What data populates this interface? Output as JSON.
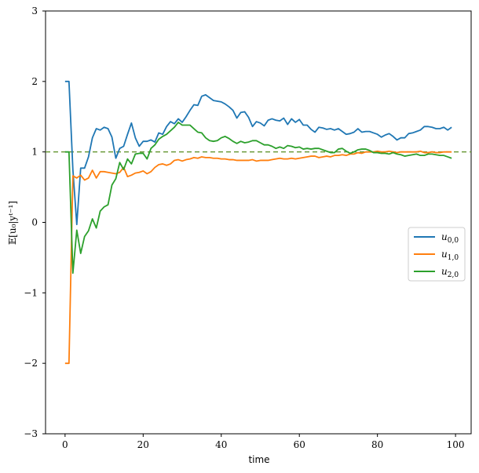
{
  "chart_data": {
    "type": "line",
    "title": "",
    "xlabel": "time",
    "ylabel": "𝔼[u₀|yᵗ⁻¹]",
    "xlim": [
      -5,
      104
    ],
    "ylim": [
      -3,
      3
    ],
    "xticks": [
      0,
      20,
      40,
      60,
      80,
      100
    ],
    "yticks": [
      -3,
      -2,
      -1,
      0,
      1,
      2,
      3
    ],
    "xtick_labels": [
      "0",
      "20",
      "40",
      "60",
      "80",
      "100"
    ],
    "ytick_labels": [
      "−3",
      "−2",
      "−1",
      "0",
      "1",
      "2",
      "3"
    ],
    "grid": false,
    "legend_position": "center-right",
    "reference_line": {
      "y": 1,
      "style": "dashed",
      "color": "#6b9a3a"
    },
    "x": [
      0,
      1,
      2,
      3,
      4,
      5,
      6,
      7,
      8,
      9,
      10,
      11,
      12,
      13,
      14,
      15,
      16,
      17,
      18,
      19,
      20,
      21,
      22,
      23,
      24,
      25,
      26,
      27,
      28,
      29,
      30,
      31,
      32,
      33,
      34,
      35,
      36,
      37,
      38,
      39,
      40,
      41,
      42,
      43,
      44,
      45,
      46,
      47,
      48,
      49,
      50,
      51,
      52,
      53,
      54,
      55,
      56,
      57,
      58,
      59,
      60,
      61,
      62,
      63,
      64,
      65,
      66,
      67,
      68,
      69,
      70,
      71,
      72,
      73,
      74,
      75,
      76,
      77,
      78,
      79,
      80,
      81,
      82,
      83,
      84,
      85,
      86,
      87,
      88,
      89,
      90,
      91,
      92,
      93,
      94,
      95,
      96,
      97,
      98,
      99
    ],
    "series": [
      {
        "name": "u_{0,0}",
        "color": "#1f77b4",
        "values": [
          2.0,
          2.0,
          0.75,
          -0.03,
          0.77,
          0.77,
          0.93,
          1.2,
          1.33,
          1.31,
          1.35,
          1.33,
          1.21,
          0.91,
          1.05,
          1.08,
          1.25,
          1.41,
          1.2,
          1.08,
          1.15,
          1.15,
          1.17,
          1.14,
          1.27,
          1.25,
          1.36,
          1.43,
          1.4,
          1.47,
          1.42,
          1.5,
          1.59,
          1.67,
          1.66,
          1.79,
          1.81,
          1.77,
          1.73,
          1.72,
          1.71,
          1.68,
          1.64,
          1.59,
          1.48,
          1.56,
          1.57,
          1.49,
          1.36,
          1.43,
          1.41,
          1.37,
          1.45,
          1.47,
          1.45,
          1.44,
          1.48,
          1.39,
          1.47,
          1.42,
          1.46,
          1.38,
          1.38,
          1.32,
          1.28,
          1.35,
          1.34,
          1.32,
          1.33,
          1.31,
          1.33,
          1.29,
          1.25,
          1.26,
          1.28,
          1.33,
          1.28,
          1.29,
          1.29,
          1.27,
          1.25,
          1.21,
          1.24,
          1.26,
          1.22,
          1.17,
          1.2,
          1.2,
          1.26,
          1.27,
          1.29,
          1.31,
          1.36,
          1.36,
          1.35,
          1.33,
          1.33,
          1.35,
          1.31,
          1.35
        ]
      },
      {
        "name": "u_{1,0}",
        "color": "#ff7f0e",
        "values": [
          -2.0,
          -2.0,
          0.66,
          0.63,
          0.67,
          0.6,
          0.63,
          0.74,
          0.63,
          0.72,
          0.72,
          0.71,
          0.7,
          0.69,
          0.71,
          0.78,
          0.65,
          0.67,
          0.7,
          0.71,
          0.73,
          0.69,
          0.72,
          0.78,
          0.82,
          0.83,
          0.81,
          0.83,
          0.88,
          0.89,
          0.87,
          0.89,
          0.9,
          0.92,
          0.91,
          0.93,
          0.92,
          0.92,
          0.91,
          0.91,
          0.9,
          0.9,
          0.89,
          0.89,
          0.88,
          0.88,
          0.88,
          0.88,
          0.89,
          0.87,
          0.88,
          0.88,
          0.88,
          0.89,
          0.9,
          0.91,
          0.9,
          0.9,
          0.91,
          0.9,
          0.91,
          0.92,
          0.93,
          0.94,
          0.94,
          0.92,
          0.93,
          0.94,
          0.93,
          0.95,
          0.95,
          0.96,
          0.95,
          0.97,
          0.97,
          0.99,
          0.98,
          1.0,
          1.0,
          1.0,
          1.01,
          1.0,
          1.0,
          1.01,
          1.0,
          0.99,
          1.0,
          1.0,
          1.0,
          1.0,
          1.0,
          1.01,
          0.99,
          0.99,
          1.0,
          0.99,
          0.99,
          1.0,
          1.0,
          1.0
        ]
      },
      {
        "name": "u_{2,0}",
        "color": "#2ca02c",
        "values": [
          1.0,
          1.0,
          -0.72,
          -0.11,
          -0.44,
          -0.2,
          -0.12,
          0.05,
          -0.08,
          0.16,
          0.22,
          0.25,
          0.53,
          0.62,
          0.85,
          0.75,
          0.9,
          0.83,
          0.97,
          0.98,
          0.98,
          0.9,
          1.05,
          1.1,
          1.18,
          1.22,
          1.25,
          1.3,
          1.35,
          1.42,
          1.38,
          1.38,
          1.38,
          1.33,
          1.28,
          1.27,
          1.2,
          1.16,
          1.15,
          1.16,
          1.2,
          1.22,
          1.19,
          1.15,
          1.12,
          1.15,
          1.13,
          1.14,
          1.16,
          1.16,
          1.13,
          1.1,
          1.1,
          1.08,
          1.05,
          1.07,
          1.05,
          1.09,
          1.08,
          1.06,
          1.07,
          1.04,
          1.05,
          1.04,
          1.05,
          1.05,
          1.03,
          1.01,
          0.99,
          0.99,
          1.04,
          1.05,
          1.01,
          0.98,
          1.0,
          1.03,
          1.04,
          1.04,
          1.02,
          0.99,
          0.99,
          0.98,
          0.98,
          0.97,
          0.99,
          0.97,
          0.96,
          0.94,
          0.95,
          0.96,
          0.97,
          0.95,
          0.95,
          0.97,
          0.97,
          0.96,
          0.95,
          0.95,
          0.93,
          0.91
        ]
      }
    ]
  }
}
